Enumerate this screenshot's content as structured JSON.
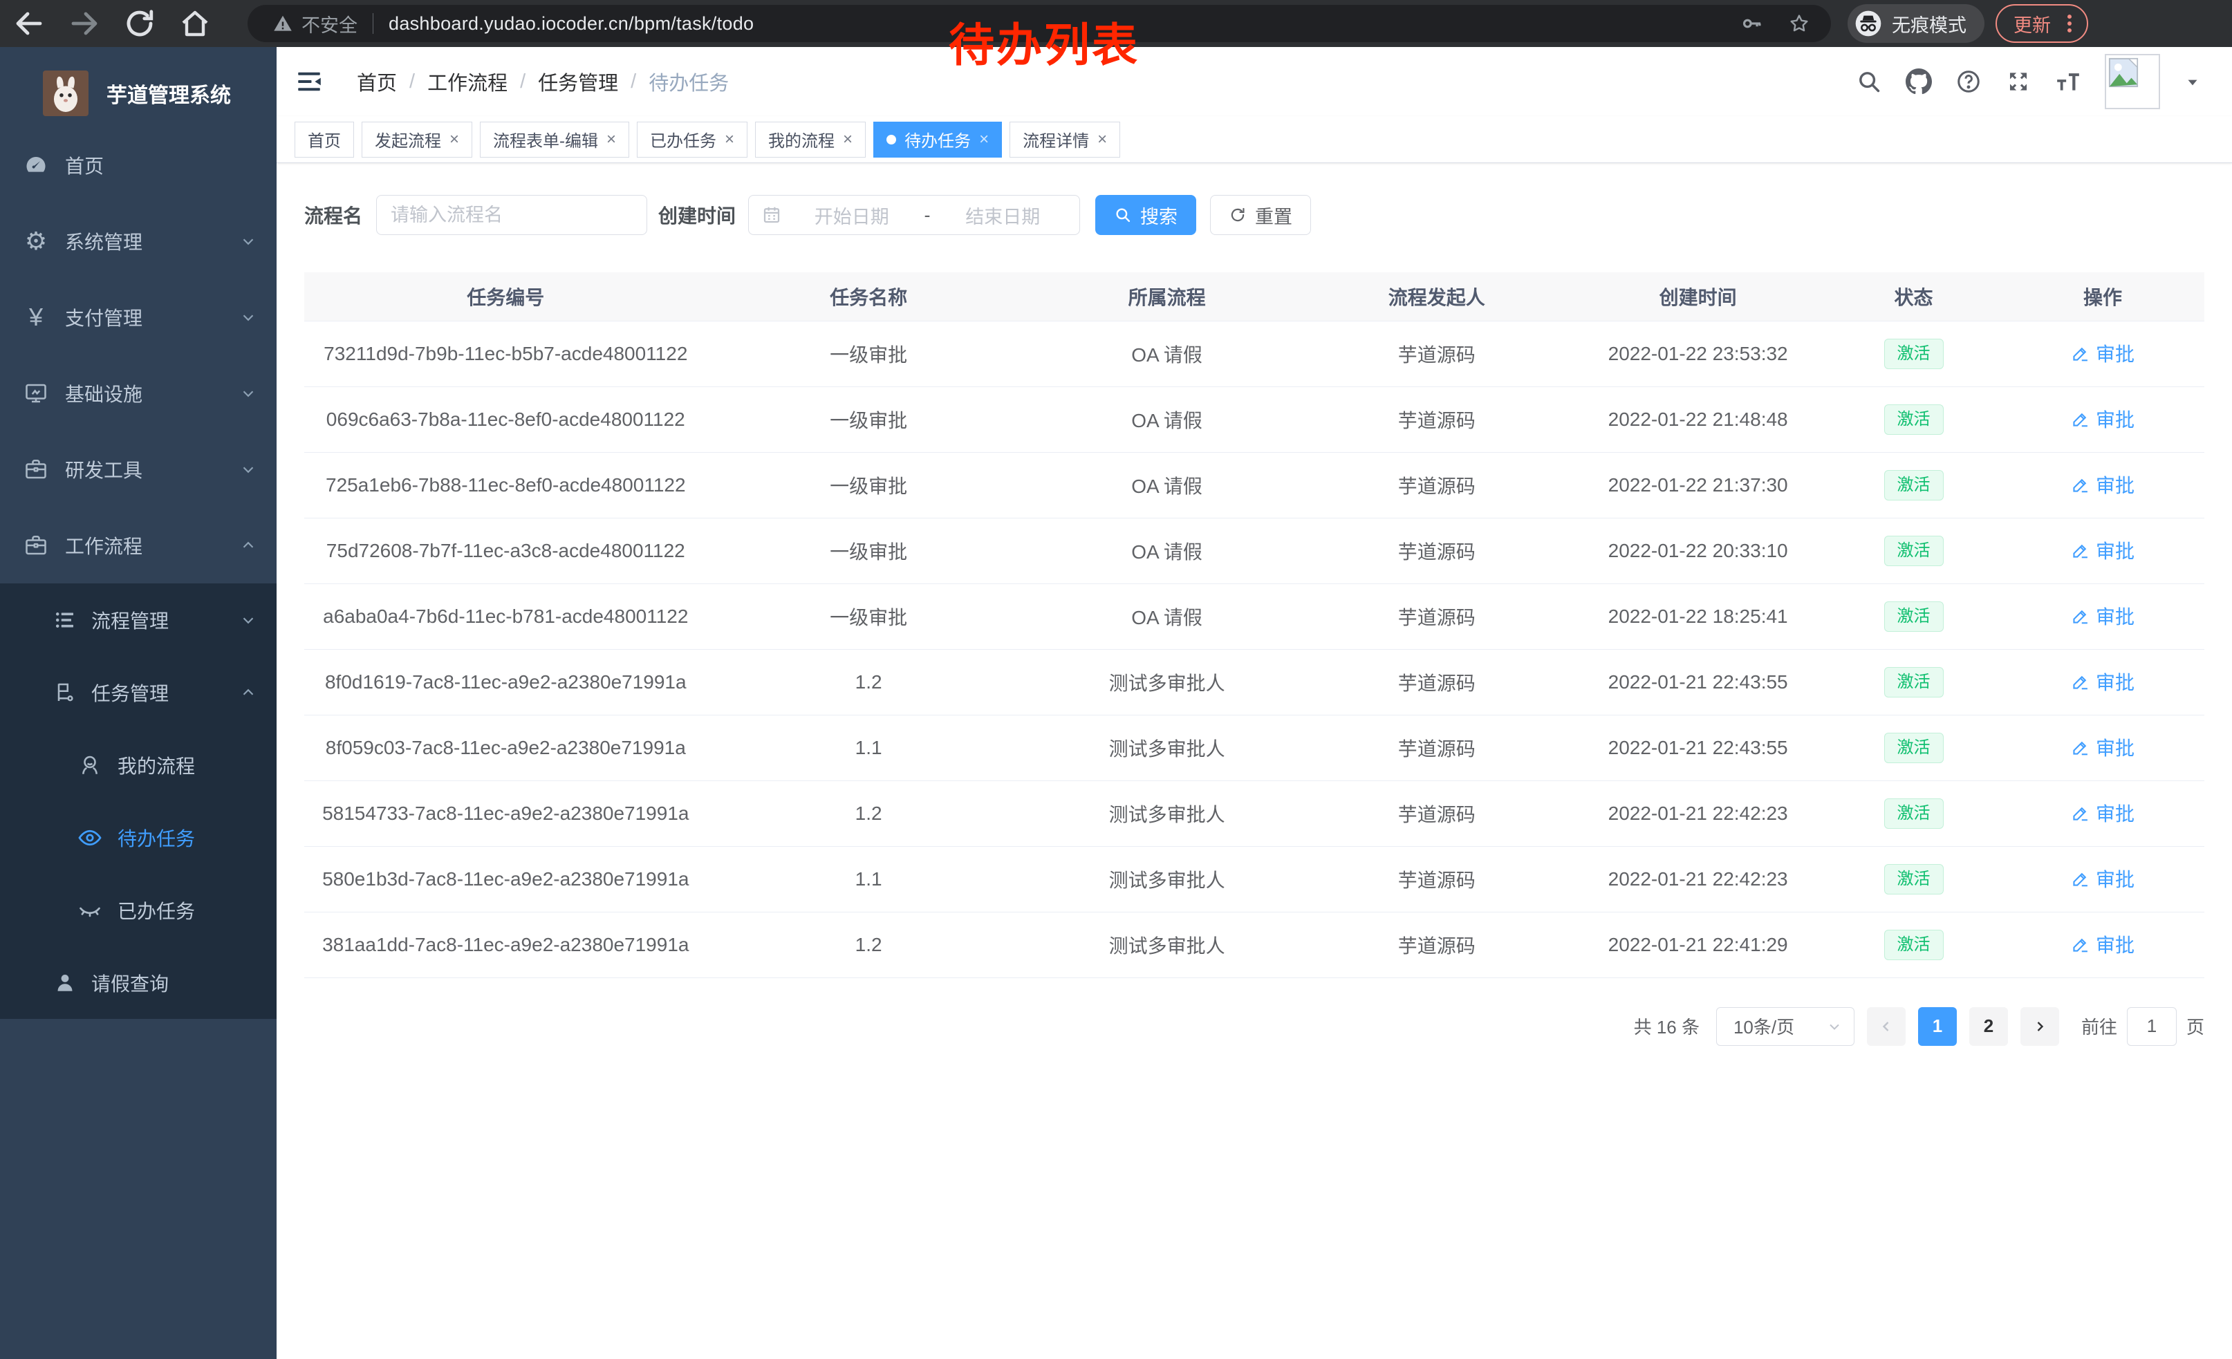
{
  "browser": {
    "security_label": "不安全",
    "url": "dashboard.yudao.iocoder.cn/bpm/task/todo",
    "incognito_label": "无痕模式",
    "update_label": "更新"
  },
  "annotation": {
    "text": "待办列表",
    "color": "#ff2600"
  },
  "sidebar": {
    "title": "芋道管理系统",
    "menu": [
      {
        "label": "首页",
        "icon": "dashboard-icon",
        "level": 0,
        "group": "root"
      },
      {
        "label": "系统管理",
        "icon": "gear-icon",
        "level": 0,
        "group": "root",
        "chevron": "down"
      },
      {
        "label": "支付管理",
        "icon": "yen-icon",
        "level": 0,
        "group": "root",
        "chevron": "down"
      },
      {
        "label": "基础设施",
        "icon": "monitor-icon",
        "level": 0,
        "group": "root",
        "chevron": "down"
      },
      {
        "label": "研发工具",
        "icon": "briefcase-icon",
        "level": 0,
        "group": "root",
        "chevron": "down"
      },
      {
        "label": "工作流程",
        "icon": "briefcase-icon",
        "level": 0,
        "group": "root",
        "chevron": "up"
      },
      {
        "label": "流程管理",
        "icon": "list-icon",
        "level": 1,
        "group": "sub",
        "chevron": "down"
      },
      {
        "label": "任务管理",
        "icon": "flag-node-icon",
        "level": 1,
        "group": "sub",
        "chevron": "up"
      },
      {
        "label": "我的流程",
        "icon": "user-group-icon",
        "level": 2,
        "group": "sub"
      },
      {
        "label": "待办任务",
        "icon": "eye-open-icon",
        "level": 2,
        "group": "sub",
        "active": true
      },
      {
        "label": "已办任务",
        "icon": "eye-closed-icon",
        "level": 2,
        "group": "sub"
      },
      {
        "label": "请假查询",
        "icon": "person-icon",
        "level": 1,
        "group": "sub"
      }
    ]
  },
  "breadcrumb": [
    "首页",
    "工作流程",
    "任务管理",
    "待办任务"
  ],
  "tabs": [
    {
      "label": "首页",
      "closable": false,
      "active": false
    },
    {
      "label": "发起流程",
      "closable": true,
      "active": false
    },
    {
      "label": "流程表单-编辑",
      "closable": true,
      "active": false
    },
    {
      "label": "已办任务",
      "closable": true,
      "active": false
    },
    {
      "label": "我的流程",
      "closable": true,
      "active": false
    },
    {
      "label": "待办任务",
      "closable": true,
      "active": true
    },
    {
      "label": "流程详情",
      "closable": true,
      "active": false
    }
  ],
  "filters": {
    "name_label": "流程名",
    "name_placeholder": "请输入流程名",
    "time_label": "创建时间",
    "start_placeholder": "开始日期",
    "range_separator": "-",
    "end_placeholder": "结束日期",
    "search_label": "搜索",
    "reset_label": "重置"
  },
  "table": {
    "columns": [
      "任务编号",
      "任务名称",
      "所属流程",
      "流程发起人",
      "创建时间",
      "状态",
      "操作"
    ],
    "rows": [
      {
        "id": "73211d9d-7b9b-11ec-b5b7-acde48001122",
        "name": "一级审批",
        "process": "OA 请假",
        "starter": "芋道源码",
        "created": "2022-01-22 23:53:32",
        "status": "激活",
        "action": "审批"
      },
      {
        "id": "069c6a63-7b8a-11ec-8ef0-acde48001122",
        "name": "一级审批",
        "process": "OA 请假",
        "starter": "芋道源码",
        "created": "2022-01-22 21:48:48",
        "status": "激活",
        "action": "审批"
      },
      {
        "id": "725a1eb6-7b88-11ec-8ef0-acde48001122",
        "name": "一级审批",
        "process": "OA 请假",
        "starter": "芋道源码",
        "created": "2022-01-22 21:37:30",
        "status": "激活",
        "action": "审批"
      },
      {
        "id": "75d72608-7b7f-11ec-a3c8-acde48001122",
        "name": "一级审批",
        "process": "OA 请假",
        "starter": "芋道源码",
        "created": "2022-01-22 20:33:10",
        "status": "激活",
        "action": "审批"
      },
      {
        "id": "a6aba0a4-7b6d-11ec-b781-acde48001122",
        "name": "一级审批",
        "process": "OA 请假",
        "starter": "芋道源码",
        "created": "2022-01-22 18:25:41",
        "status": "激活",
        "action": "审批"
      },
      {
        "id": "8f0d1619-7ac8-11ec-a9e2-a2380e71991a",
        "name": "1.2",
        "process": "测试多审批人",
        "starter": "芋道源码",
        "created": "2022-01-21 22:43:55",
        "status": "激活",
        "action": "审批"
      },
      {
        "id": "8f059c03-7ac8-11ec-a9e2-a2380e71991a",
        "name": "1.1",
        "process": "测试多审批人",
        "starter": "芋道源码",
        "created": "2022-01-21 22:43:55",
        "status": "激活",
        "action": "审批"
      },
      {
        "id": "58154733-7ac8-11ec-a9e2-a2380e71991a",
        "name": "1.2",
        "process": "测试多审批人",
        "starter": "芋道源码",
        "created": "2022-01-21 22:42:23",
        "status": "激活",
        "action": "审批"
      },
      {
        "id": "580e1b3d-7ac8-11ec-a9e2-a2380e71991a",
        "name": "1.1",
        "process": "测试多审批人",
        "starter": "芋道源码",
        "created": "2022-01-21 22:42:23",
        "status": "激活",
        "action": "审批"
      },
      {
        "id": "381aa1dd-7ac8-11ec-a9e2-a2380e71991a",
        "name": "1.2",
        "process": "测试多审批人",
        "starter": "芋道源码",
        "created": "2022-01-21 22:41:29",
        "status": "激活",
        "action": "审批"
      }
    ]
  },
  "pagination": {
    "total": "共 16 条",
    "page_size": "10条/页",
    "pages": [
      "1",
      "2"
    ],
    "active_page": "1",
    "goto_label": "前往",
    "goto_value": "1",
    "goto_suffix": "页"
  },
  "colors": {
    "accent": "#409eff",
    "status_active": "#0fbf6f",
    "annotation": "#ff2600"
  }
}
